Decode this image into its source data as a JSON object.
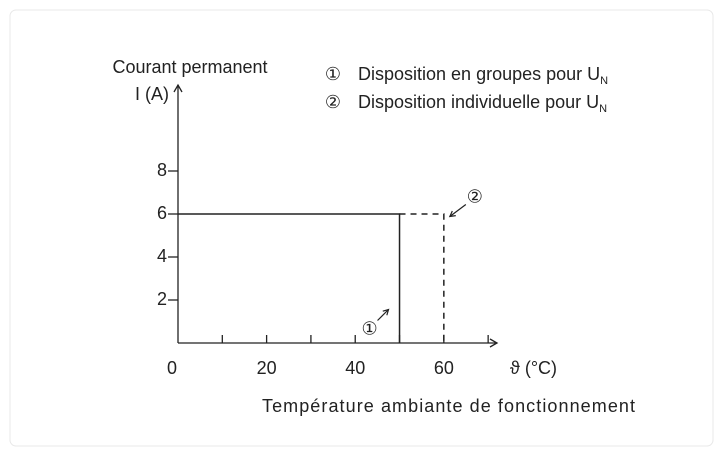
{
  "chart_data": {
    "type": "line",
    "y_label_lines": [
      "Courant permanent",
      "I (A)"
    ],
    "x_unit_label": "ϑ (°C)",
    "x_label": "Température ambiante de fonctionnement",
    "xlim": [
      0,
      72
    ],
    "xticks": [
      0,
      20,
      40,
      60
    ],
    "x_minor_ticks": [
      10,
      30,
      50,
      70
    ],
    "ylim": [
      0,
      12
    ],
    "yticks": [
      2,
      4,
      6,
      8
    ],
    "series": [
      {
        "marker": "①",
        "name": "Disposition en groupes pour U",
        "subscript": "N",
        "color": "#222222",
        "dashed": false,
        "x": [
          0,
          50,
          50
        ],
        "values": [
          6,
          6,
          0
        ]
      },
      {
        "marker": "②",
        "name": "Disposition individuelle pour U",
        "subscript": "N",
        "color": "#222222",
        "dashed": true,
        "x": [
          50,
          60,
          60
        ],
        "values": [
          6,
          6,
          0
        ]
      }
    ],
    "annotations": [
      {
        "text": "①",
        "x": 50,
        "y": 1
      },
      {
        "text": "②",
        "x": 60,
        "y": 7
      }
    ]
  }
}
